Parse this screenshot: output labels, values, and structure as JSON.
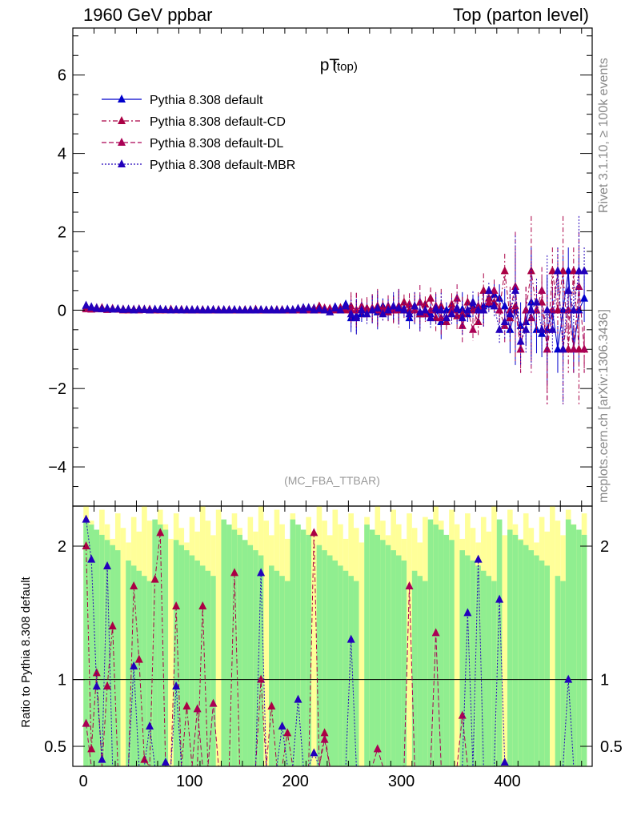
{
  "header": {
    "left": "1960 GeV ppbar",
    "right": "Top (parton level)"
  },
  "side_labels": {
    "rivet": "Rivet 3.1.10, ≥ 100k events",
    "mcplots": "mcplots.cern.ch [arXiv:1306.3436]"
  },
  "chart_data": [
    {
      "type": "line",
      "panel": "main",
      "title": "pT",
      "title_sub": "(top)",
      "watermark": "(MC_FBA_TTBAR)",
      "xlim": [
        -10,
        480
      ],
      "ylim": [
        -5,
        7.2
      ],
      "yticks": [
        -4,
        -2,
        0,
        2,
        4,
        6
      ],
      "ytick_labels": [
        "−4",
        "−2",
        "0",
        "2",
        "4",
        "6"
      ],
      "legend": [
        {
          "name": "Pythia 8.308 default",
          "color": "#0000cc",
          "dash": "solid"
        },
        {
          "name": "Pythia 8.308 default-CD",
          "color": "#aa0044",
          "dash": "dashdot"
        },
        {
          "name": "Pythia 8.308 default-DL",
          "color": "#aa0055",
          "dash": "dashed"
        },
        {
          "name": "Pythia 8.308 default-MBR",
          "color": "#2200bb",
          "dash": "dotted"
        }
      ],
      "x": [
        2.5,
        7.5,
        12.5,
        17.5,
        22.5,
        27.5,
        32.5,
        37.5,
        42.5,
        47.5,
        52.5,
        57.5,
        62.5,
        67.5,
        72.5,
        77.5,
        82.5,
        87.5,
        92.5,
        97.5,
        102.5,
        107.5,
        112.5,
        117.5,
        122.5,
        127.5,
        132.5,
        137.5,
        142.5,
        147.5,
        152.5,
        157.5,
        162.5,
        167.5,
        172.5,
        177.5,
        182.5,
        187.5,
        192.5,
        197.5,
        202.5,
        207.5,
        212.5,
        217.5,
        222.5,
        227.5,
        232.5,
        237.5,
        242.5,
        247.5,
        252.5,
        257.5,
        262.5,
        267.5,
        272.5,
        277.5,
        282.5,
        287.5,
        292.5,
        297.5,
        302.5,
        307.5,
        312.5,
        317.5,
        322.5,
        327.5,
        332.5,
        337.5,
        342.5,
        347.5,
        352.5,
        357.5,
        362.5,
        367.5,
        372.5,
        377.5,
        382.5,
        387.5,
        392.5,
        397.5,
        402.5,
        407.5,
        412.5,
        417.5,
        422.5,
        427.5,
        432.5,
        437.5,
        442.5,
        447.5,
        452.5,
        457.5,
        462.5,
        467.5,
        472.5
      ],
      "series": [
        {
          "name": "Pythia 8.308 default",
          "values": [
            0.1,
            0.08,
            0.06,
            0.04,
            0.05,
            0.03,
            0.03,
            0.02,
            0.02,
            0.02,
            0.01,
            0.02,
            0.01,
            0.01,
            0.02,
            0.01,
            0.01,
            0.01,
            0.01,
            0.0,
            0.01,
            0.0,
            0.0,
            0.01,
            0.0,
            0.0,
            0.01,
            0.0,
            0.0,
            0.0,
            0.0,
            0.01,
            0.0,
            0.0,
            0.0,
            0.01,
            0.0,
            0.0,
            0.0,
            0.01,
            0.03,
            0.06,
            0.04,
            0.05,
            0.07,
            0.02,
            0.0,
            0.08,
            0.04,
            0.15,
            -0.2,
            -0.15,
            -0.1,
            0.0,
            0.04,
            -0.05,
            0.1,
            0.0,
            0.05,
            0.1,
            0.04,
            -0.2,
            0.0,
            -0.1,
            -0.05,
            -0.1,
            0.0,
            -0.3,
            0.0,
            0.05,
            0.0,
            0.02,
            -0.1,
            0.1,
            0.05,
            0.1,
            0.15,
            0.4,
            0.3,
            0.1,
            -0.5,
            0.0,
            -0.4,
            -0.3,
            0.2,
            -0.5,
            -0.6,
            -0.5,
            0.0,
            -1.0,
            0.0,
            1.0,
            -1.0,
            0.0,
            0.3
          ]
        },
        {
          "name": "Pythia 8.308 default-CD",
          "values": [
            0.05,
            0.04,
            0.03,
            0.06,
            0.02,
            0.03,
            0.02,
            0.02,
            0.0,
            0.01,
            0.03,
            0.01,
            0.02,
            0.0,
            0.0,
            0.01,
            0.02,
            0.01,
            0.01,
            0.0,
            0.0,
            0.01,
            0.0,
            0.0,
            0.01,
            0.01,
            0.0,
            0.0,
            0.0,
            0.0,
            0.01,
            0.0,
            0.02,
            0.0,
            0.0,
            0.0,
            0.01,
            0.0,
            0.0,
            0.0,
            0.03,
            0.0,
            0.04,
            0.0,
            0.1,
            0.0,
            0.04,
            0.0,
            0.06,
            0.0,
            0.1,
            0.0,
            0.0,
            0.05,
            0.02,
            0.1,
            0.05,
            -0.05,
            0.0,
            0.0,
            0.2,
            0.0,
            0.1,
            -0.1,
            0.15,
            0.3,
            -0.2,
            0.1,
            -0.3,
            0.15,
            -0.15,
            -0.1,
            0.2,
            0.0,
            -0.3,
            0.5,
            0.3,
            0.2,
            0.0,
            1.0,
            -0.2,
            0.1,
            -1.0,
            0.0,
            1.0,
            0.0,
            0.2,
            -1.0,
            1.0,
            0.0,
            1.0,
            -1.0,
            1.0,
            -1.0,
            -1.0
          ]
        },
        {
          "name": "Pythia 8.308 default-DL",
          "values": [
            0.03,
            0.02,
            0.05,
            0.03,
            0.01,
            0.04,
            0.02,
            0.0,
            0.02,
            0.01,
            0.0,
            0.02,
            0.0,
            0.01,
            0.01,
            0.0,
            0.01,
            0.0,
            0.01,
            0.01,
            0.0,
            0.0,
            0.01,
            0.0,
            0.0,
            0.0,
            0.0,
            0.01,
            0.0,
            0.0,
            0.0,
            0.0,
            0.01,
            0.0,
            0.0,
            0.0,
            0.0,
            0.01,
            0.0,
            0.0,
            0.0,
            0.02,
            0.0,
            0.03,
            0.0,
            0.05,
            0.0,
            0.02,
            0.0,
            0.08,
            0.0,
            0.0,
            0.1,
            0.0,
            0.05,
            0.0,
            -0.05,
            0.1,
            0.0,
            0.1,
            0.0,
            0.15,
            0.0,
            0.2,
            -0.1,
            0.0,
            0.1,
            -0.2,
            -0.2,
            0.0,
            0.3,
            -0.4,
            0.0,
            -0.5,
            0.1,
            0.0,
            0.2,
            0.5,
            0.0,
            -0.4,
            0.0,
            0.6,
            -1.0,
            0.0,
            -0.2,
            0.0,
            0.5,
            -1.0,
            0.0,
            1.0,
            -1.0,
            0.0,
            -1.0,
            0.6,
            -1.0
          ]
        },
        {
          "name": "Pythia 8.308 default-MBR",
          "values": [
            0.12,
            0.07,
            0.04,
            0.03,
            0.04,
            0.02,
            0.03,
            0.01,
            0.02,
            0.0,
            0.02,
            0.01,
            0.0,
            0.02,
            0.01,
            0.01,
            0.0,
            0.01,
            0.0,
            0.01,
            0.0,
            0.01,
            0.0,
            0.0,
            0.01,
            0.0,
            0.0,
            0.0,
            0.01,
            0.0,
            0.0,
            0.0,
            0.0,
            0.01,
            0.0,
            0.0,
            0.0,
            0.0,
            0.02,
            0.0,
            0.04,
            0.0,
            0.06,
            0.0,
            0.03,
            0.0,
            -0.05,
            0.05,
            0.0,
            0.1,
            -0.1,
            -0.2,
            0.0,
            -0.1,
            0.0,
            0.05,
            -0.1,
            0.0,
            0.1,
            0.05,
            0.0,
            -0.1,
            0.1,
            -0.05,
            0.0,
            -0.2,
            0.05,
            0.0,
            -0.2,
            -0.1,
            0.05,
            -0.2,
            0.0,
            0.2,
            0.0,
            0.0,
            0.5,
            0.1,
            -0.5,
            -0.3,
            -0.1,
            0.5,
            -0.8,
            -0.5,
            0.0,
            0.2,
            -0.5,
            0.0,
            -0.5,
            1.0,
            -1.0,
            0.5,
            0.0,
            1.0,
            1.0
          ]
        }
      ]
    },
    {
      "type": "line",
      "panel": "ratio",
      "ylabel": "Ratio to Pythia 8.308 default",
      "xlim": [
        -10,
        480
      ],
      "ylim": [
        0.35,
        2.3
      ],
      "yticks": [
        0.5,
        1,
        2
      ],
      "ytick_labels": [
        "0.5",
        "1",
        "2"
      ],
      "xticks": [
        0,
        100,
        200,
        300,
        400
      ],
      "xtick_labels": [
        "0",
        "100",
        "200",
        "300",
        "400"
      ],
      "reference_line": 1,
      "band_colors": {
        "inner": "#90ee90",
        "outer": "#ffff99"
      },
      "ratio_series": [
        {
          "name": "Pythia 8.308 default-CD",
          "values": [
            2.0,
            0.48,
            1.05,
            0.35,
            0.95,
            1.4,
            0.35,
            0.35,
            0.35,
            1.7,
            1.15,
            0.4,
            0.35,
            1.75,
            2.1,
            0.35,
            0.35,
            1.55,
            0.35,
            0.8,
            0.35,
            0.35,
            1.55,
            0.35,
            0.35,
            0.35,
            0.35,
            0.35,
            1.8,
            0.35,
            0.35,
            0.35,
            0.35,
            1.0,
            0.35,
            0.8,
            0.35,
            0.35,
            0.6,
            0.35,
            0.35,
            0.35,
            0.35,
            2.1,
            0.35,
            0.6,
            0.35,
            0.35,
            0.35,
            0.35,
            0.35,
            0.35,
            0.35,
            0.35,
            0.35,
            0.35,
            0.35,
            0.35,
            0.35,
            0.35,
            0.35,
            0.35,
            0.35,
            0.35,
            0.35,
            0.35,
            0.35,
            0.35,
            0.35,
            0.35,
            0.35,
            0.35,
            0.35,
            0.35,
            0.35,
            0.35,
            0.35,
            0.35,
            0.35,
            0.35,
            0.35,
            0.35,
            0.35,
            0.35,
            0.35,
            0.35,
            0.35,
            0.35,
            0.35,
            0.35,
            0.35,
            0.35,
            0.35,
            0.35,
            0.35
          ]
        },
        {
          "name": "Pythia 8.308 default-DL",
          "values": [
            0.67,
            0.35,
            0.35,
            0.35,
            0.35,
            0.35,
            0.35,
            0.35,
            0.35,
            0.35,
            0.35,
            0.35,
            0.35,
            0.35,
            0.35,
            0.35,
            0.35,
            0.35,
            0.35,
            0.35,
            0.35,
            0.78,
            0.35,
            0.35,
            0.82,
            0.35,
            0.35,
            0.35,
            0.35,
            0.35,
            0.35,
            0.35,
            0.35,
            0.35,
            0.35,
            0.35,
            0.35,
            0.35,
            0.35,
            0.35,
            0.35,
            0.35,
            0.35,
            0.35,
            0.35,
            0.55,
            0.35,
            0.35,
            0.35,
            0.35,
            0.35,
            0.35,
            0.35,
            0.35,
            0.35,
            0.48,
            0.35,
            0.35,
            0.35,
            0.35,
            0.35,
            1.7,
            0.35,
            0.35,
            0.35,
            0.35,
            1.35,
            0.35,
            0.35,
            0.35,
            0.35,
            0.73,
            0.35,
            0.35,
            0.35,
            0.35,
            0.35,
            0.35,
            0.35,
            0.35,
            0.35,
            0.35,
            0.35,
            0.35,
            0.35,
            0.35,
            0.35,
            0.35,
            0.35,
            0.35,
            0.35,
            0.35,
            0.35,
            0.35,
            0.35
          ]
        },
        {
          "name": "Pythia 8.308 default-MBR",
          "values": [
            2.2,
            1.9,
            0.95,
            0.4,
            1.85,
            0.35,
            0.35,
            0.35,
            0.35,
            1.1,
            0.35,
            0.35,
            0.65,
            0.35,
            0.35,
            0.38,
            0.35,
            0.95,
            0.35,
            0.35,
            0.35,
            0.35,
            0.35,
            0.35,
            0.35,
            0.35,
            0.35,
            0.35,
            0.35,
            0.35,
            0.35,
            0.35,
            0.35,
            1.8,
            0.35,
            0.35,
            0.35,
            0.65,
            0.35,
            0.35,
            0.85,
            0.35,
            0.35,
            0.45,
            0.35,
            0.35,
            0.35,
            0.35,
            0.35,
            0.35,
            1.3,
            0.35,
            0.35,
            0.35,
            0.35,
            0.35,
            0.35,
            0.35,
            0.35,
            0.35,
            0.35,
            0.35,
            0.35,
            0.35,
            0.35,
            0.35,
            0.35,
            0.35,
            0.35,
            0.35,
            0.35,
            0.35,
            1.5,
            0.35,
            1.9,
            0.35,
            0.35,
            0.35,
            1.6,
            0.38,
            0.35,
            0.35,
            0.35,
            0.35,
            0.35,
            0.35,
            0.35,
            0.35,
            0.35,
            0.35,
            0.35,
            1.0,
            0.35,
            0.35,
            0.35
          ]
        }
      ]
    }
  ]
}
